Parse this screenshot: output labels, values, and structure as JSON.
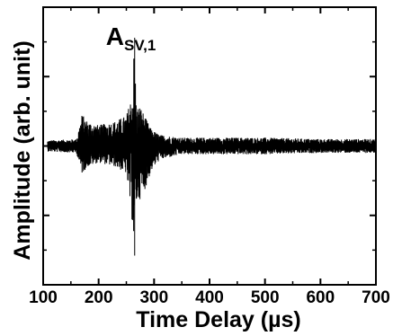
{
  "chart_data": {
    "type": "line",
    "xlabel": "Time Delay (µs)",
    "ylabel": "Amplitude (arb. unit)",
    "xlim": [
      100,
      700
    ],
    "ylim": [
      -1,
      1
    ],
    "x_ticks": [
      100,
      200,
      300,
      400,
      500,
      600,
      700
    ],
    "x_tick_labels": [
      "100",
      "200",
      "300",
      "400",
      "500",
      "600",
      "700"
    ],
    "y_tick_labels_visible": false,
    "grid": false,
    "annotation": {
      "text": "A",
      "subscript": "SV,1",
      "x": 265,
      "y": 0.78
    },
    "series": [
      {
        "values_description": "Noise-like ultrasonic trace centered near zero with a sharp burst around 265 µs",
        "envelope": {
          "x": [
            108,
            160,
            170,
            180,
            200,
            230,
            250,
            262,
            264,
            266,
            268,
            275,
            285,
            295,
            310,
            350,
            400,
            500,
            600,
            700
          ],
          "upper": [
            0.04,
            0.05,
            0.23,
            0.18,
            0.15,
            0.18,
            0.22,
            0.4,
            0.78,
            0.55,
            0.28,
            0.29,
            0.2,
            0.12,
            0.08,
            0.06,
            0.06,
            0.06,
            0.05,
            0.05
          ],
          "lower": [
            -0.04,
            -0.05,
            -0.2,
            -0.15,
            -0.12,
            -0.15,
            -0.2,
            -0.6,
            -0.79,
            -0.48,
            -0.42,
            -0.38,
            -0.3,
            -0.18,
            -0.1,
            -0.06,
            -0.06,
            -0.06,
            -0.05,
            -0.05
          ]
        }
      }
    ]
  }
}
